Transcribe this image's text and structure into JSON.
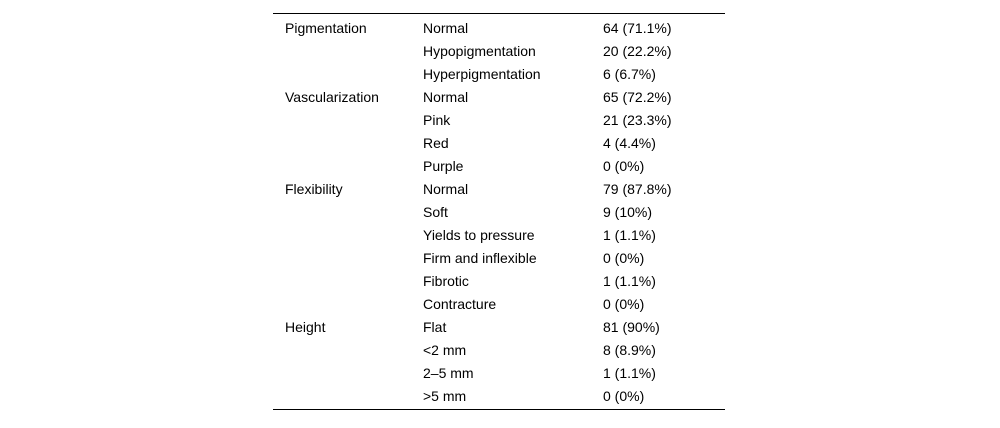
{
  "table": {
    "groups": [
      {
        "category": "Pigmentation",
        "rows": [
          {
            "label": "Normal",
            "value": "64 (71.1%)"
          },
          {
            "label": "Hypopigmentation",
            "value": "20 (22.2%)"
          },
          {
            "label": "Hyperpigmentation",
            "value": "6 (6.7%)"
          }
        ]
      },
      {
        "category": "Vascularization",
        "rows": [
          {
            "label": "Normal",
            "value": "65 (72.2%)"
          },
          {
            "label": "Pink",
            "value": "21 (23.3%)"
          },
          {
            "label": "Red",
            "value": "4 (4.4%)"
          },
          {
            "label": "Purple",
            "value": "0 (0%)"
          }
        ]
      },
      {
        "category": "Flexibility",
        "rows": [
          {
            "label": "Normal",
            "value": "79 (87.8%)"
          },
          {
            "label": "Soft",
            "value": "9 (10%)"
          },
          {
            "label": "Yields to pressure",
            "value": "1 (1.1%)"
          },
          {
            "label": "Firm and inflexible",
            "value": "0 (0%)"
          },
          {
            "label": "Fibrotic",
            "value": "1 (1.1%)"
          },
          {
            "label": "Contracture",
            "value": "0 (0%)"
          }
        ]
      },
      {
        "category": "Height",
        "rows": [
          {
            "label": "Flat",
            "value": "81 (90%)"
          },
          {
            "label": "<2 mm",
            "value": "8 (8.9%)"
          },
          {
            "label": "2–5 mm",
            "value": "1 (1.1%)"
          },
          {
            "label": ">5 mm",
            "value": "0 (0%)"
          }
        ]
      }
    ]
  }
}
